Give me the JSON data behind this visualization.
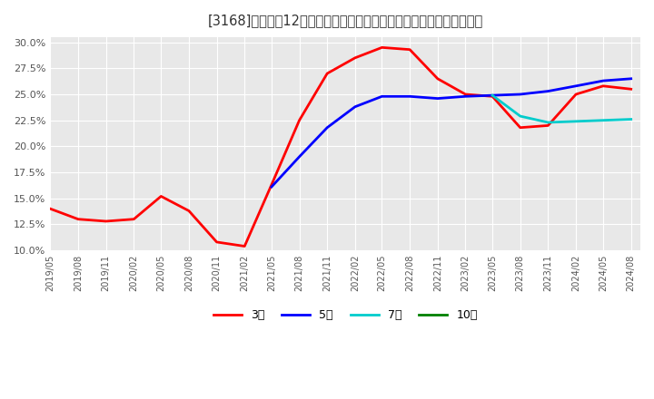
{
  "title": "[3168]　売上高12か月移動合計の対前年同期増減率の標準偏差の推移",
  "ylim": [
    0.1,
    0.305
  ],
  "yticks": [
    0.1,
    0.125,
    0.15,
    0.175,
    0.2,
    0.225,
    0.25,
    0.275,
    0.3
  ],
  "ytick_labels": [
    "10.0%",
    "12.5%",
    "15.0%",
    "17.5%",
    "20.0%",
    "22.5%",
    "25.0%",
    "27.5%",
    "30.0%"
  ],
  "background_color": "#ffffff",
  "plot_bg_color": "#f0f0f0",
  "grid_color": "#ffffff",
  "series": {
    "3year": {
      "color": "#ff0000",
      "label": "3年",
      "dates": [
        "2019/05",
        "2019/08",
        "2019/11",
        "2020/02",
        "2020/05",
        "2020/08",
        "2020/11",
        "2021/02",
        "2021/05",
        "2021/08",
        "2021/11",
        "2022/02",
        "2022/05",
        "2022/08",
        "2022/11",
        "2023/02",
        "2023/05",
        "2023/08",
        "2023/11",
        "2024/02",
        "2024/05",
        "2024/08"
      ],
      "values": [
        0.14,
        0.13,
        0.128,
        0.13,
        0.152,
        0.138,
        0.108,
        0.104,
        0.163,
        0.225,
        0.27,
        0.285,
        0.295,
        0.293,
        0.265,
        0.25,
        0.248,
        0.218,
        0.22,
        0.25,
        0.258,
        0.255
      ]
    },
    "5year": {
      "color": "#0000ff",
      "label": "5年",
      "dates": [
        "2021/05",
        "2021/08",
        "2021/11",
        "2022/02",
        "2022/05",
        "2022/08",
        "2022/11",
        "2023/02",
        "2023/05",
        "2023/08",
        "2023/11",
        "2024/02",
        "2024/05",
        "2024/08"
      ],
      "values": [
        0.161,
        0.19,
        0.218,
        0.238,
        0.248,
        0.248,
        0.246,
        0.248,
        0.249,
        0.25,
        0.253,
        0.258,
        0.263,
        0.265
      ]
    },
    "7year": {
      "color": "#00cccc",
      "label": "7年",
      "dates": [
        "2023/05",
        "2023/08",
        "2023/11",
        "2024/02",
        "2024/05",
        "2024/08"
      ],
      "values": [
        0.249,
        0.229,
        0.223,
        0.224,
        0.225,
        0.226
      ]
    },
    "10year": {
      "color": "#008000",
      "label": "10年",
      "dates": [],
      "values": []
    }
  },
  "legend_entries": [
    "3年",
    "5年",
    "7年",
    "10年"
  ],
  "legend_colors": [
    "#ff0000",
    "#0000ff",
    "#00cccc",
    "#008000"
  ]
}
